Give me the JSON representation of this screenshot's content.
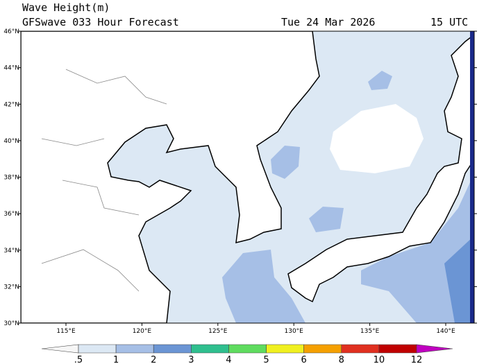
{
  "header": {
    "title": "Wave Height(m)",
    "subtitle": "GFSwave 033 Hour Forecast",
    "date": "Tue 24 Mar 2026",
    "time": "15 UTC"
  },
  "map": {
    "lat_ticks": [
      {
        "value": 30,
        "label": "30°N"
      },
      {
        "value": 32,
        "label": "32°N"
      },
      {
        "value": 34,
        "label": "34°N"
      },
      {
        "value": 36,
        "label": "36°N"
      },
      {
        "value": 38,
        "label": "38°N"
      },
      {
        "value": 40,
        "label": "40°N"
      },
      {
        "value": 42,
        "label": "42°N"
      },
      {
        "value": 44,
        "label": "44°N"
      },
      {
        "value": 46,
        "label": "46°N"
      }
    ],
    "lon_ticks": [
      {
        "value": 115,
        "label": "115°E"
      },
      {
        "value": 120,
        "label": "120°E"
      },
      {
        "value": 125,
        "label": "125°E"
      },
      {
        "value": 130,
        "label": "130°E"
      },
      {
        "value": 135,
        "label": "135°E"
      },
      {
        "value": 140,
        "label": "140°E"
      }
    ]
  },
  "colorbar": {
    "labels": [
      ".5",
      "1",
      "2",
      "3",
      "4",
      "5",
      "6",
      "8",
      "10",
      "12"
    ],
    "colors": [
      "#f6f6f6",
      "#dce8f4",
      "#a6bfe6",
      "#6b95d4",
      "#2fbf8e",
      "#5fdc5f",
      "#f0f020",
      "#f5a000",
      "#e03020",
      "#c00000",
      "#c000c0"
    ]
  }
}
